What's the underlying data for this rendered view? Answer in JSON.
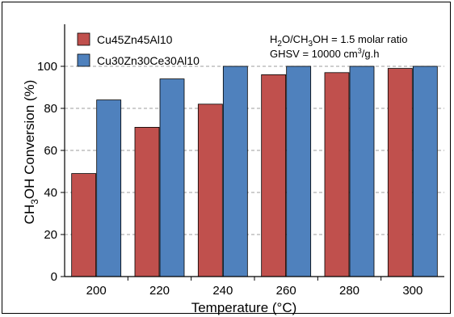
{
  "chart_data": {
    "type": "bar",
    "categories": [
      "200",
      "220",
      "240",
      "260",
      "280",
      "300"
    ],
    "series": [
      {
        "name": "Cu45Zn45Al10",
        "values": [
          49,
          71,
          82,
          96,
          97,
          99
        ],
        "color": "#c0504d"
      },
      {
        "name": "Cu30Zn30Ce30Al10",
        "values": [
          84,
          94,
          100,
          100,
          100,
          100
        ],
        "color": "#4f81bd"
      }
    ],
    "xlabel": "Temperature (°C)",
    "ylabel": {
      "pre": "CH",
      "sub": "3",
      "post": "OH Conversion (%)"
    },
    "ylim": [
      0,
      120
    ],
    "yticks": [
      "0",
      "20",
      "40",
      "60",
      "80",
      "100"
    ],
    "grid": true,
    "legend_position": "top-left",
    "annotations": {
      "ratio": {
        "p1": "H",
        "s1": "2",
        "p2": "O/CH",
        "s2": "3",
        "p3": "OH = 1.5 molar ratio"
      },
      "ghsv": {
        "p1": "GHSV = 10000 cm",
        "s1": "3",
        "p2": "/g.h"
      }
    }
  }
}
